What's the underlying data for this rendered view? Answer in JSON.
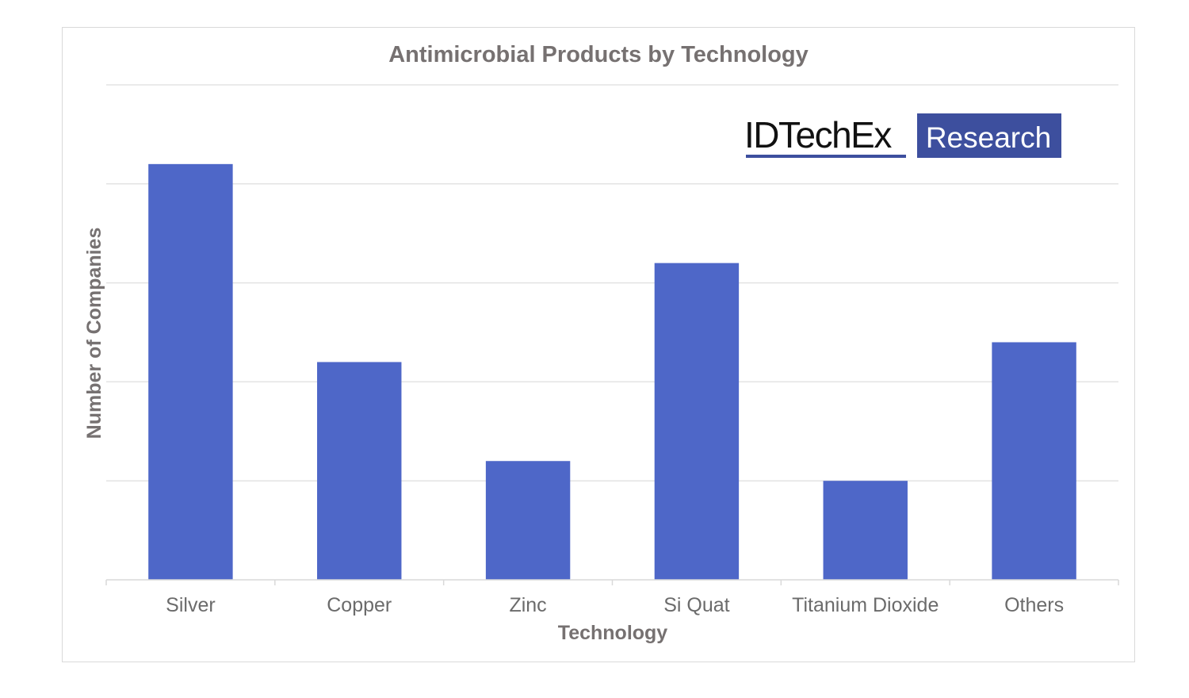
{
  "chart_data": {
    "type": "bar",
    "title": "Antimicrobial Products by Technology",
    "xlabel": "Technology",
    "ylabel": "Number of Companies",
    "categories": [
      "Silver",
      "Copper",
      "Zinc",
      "Si Quat",
      "Titanium Dioxide",
      "Others"
    ],
    "values": [
      4.2,
      2.2,
      1.2,
      3.2,
      1.0,
      2.4
    ],
    "ylim": [
      0,
      5
    ],
    "y_tick_labels_shown": false,
    "grid": true,
    "bar_color": "#4e67c8",
    "legend": "none"
  },
  "logo": {
    "text": "IDTechEx",
    "box_text": "Research",
    "color": "#3d4f9e"
  }
}
